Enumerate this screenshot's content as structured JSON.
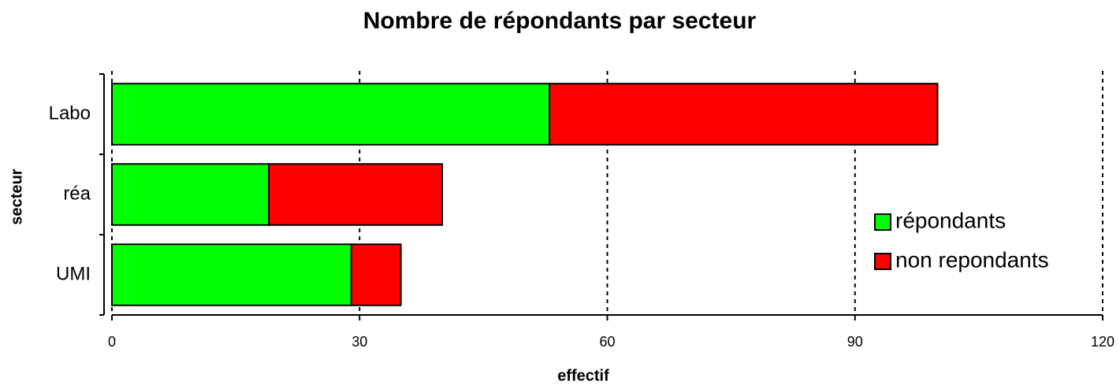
{
  "chart_data": {
    "type": "stacked-barh",
    "title": "Nombre de répondants par secteur",
    "xlabel": "effectif",
    "ylabel": "secteur",
    "categories": [
      "Labo",
      "réa",
      "UMI"
    ],
    "series": [
      {
        "name": "répondants",
        "color": "#00ff00",
        "values": [
          53,
          19,
          29
        ]
      },
      {
        "name": "non repondants",
        "color": "#ff0000",
        "values": [
          47,
          21,
          6
        ]
      }
    ],
    "xlim": [
      0,
      120
    ],
    "xticks": [
      0,
      30,
      60,
      90,
      120
    ],
    "grid": true,
    "legend": "right"
  }
}
